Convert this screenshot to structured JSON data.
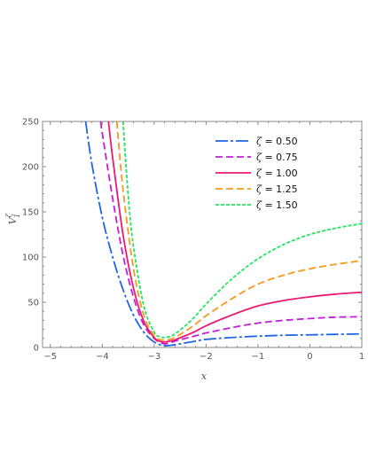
{
  "chart_data": {
    "type": "line",
    "title": "",
    "xlabel": "x",
    "ylabel": "V",
    "ylabel_sup": "ζ",
    "ylabel_sub": "1",
    "xlim": [
      -5.15,
      1.0
    ],
    "ylim": [
      0,
      250
    ],
    "x_ticks": [
      -5,
      -4,
      -3,
      -2,
      -1,
      0,
      1
    ],
    "x_tick_labels": [
      "−5",
      "−4",
      "−3",
      "−2",
      "−1",
      "0",
      "1"
    ],
    "y_ticks": [
      0,
      50,
      100,
      150,
      200,
      250
    ],
    "y_tick_labels": [
      "0",
      "50",
      "100",
      "150",
      "200",
      "250"
    ],
    "grid": false,
    "legend_position": "top-right",
    "legend_prefix": "ζ",
    "series": [
      {
        "name": "= 0.50",
        "color": "#1f66e5",
        "dash": "long-dash",
        "x": [
          -4.32,
          -4.2,
          -4.0,
          -3.8,
          -3.6,
          -3.4,
          -3.2,
          -3.0,
          -2.8,
          -2.6,
          -2.4,
          -2.2,
          -2.0,
          -1.5,
          -1.0,
          -0.5,
          0.0,
          0.5,
          1.0
        ],
        "y": [
          250,
          203,
          144,
          100,
          64,
          36,
          17,
          6,
          2,
          3,
          5,
          7,
          9,
          11,
          12.5,
          13.5,
          14,
          14.5,
          15
        ]
      },
      {
        "name": "= 0.75",
        "color": "#c21fd6",
        "dash": "dash",
        "x": [
          -4.03,
          -4.0,
          -3.8,
          -3.6,
          -3.4,
          -3.2,
          -3.0,
          -2.9,
          -2.8,
          -2.7,
          -2.6,
          -2.4,
          -2.2,
          -2.0,
          -1.5,
          -1.0,
          -0.5,
          0.0,
          0.5,
          1.0
        ],
        "y": [
          250,
          237,
          165,
          102,
          56,
          25,
          10,
          6,
          4,
          5,
          7,
          10,
          13,
          16,
          22,
          27,
          30,
          32,
          33.5,
          34
        ]
      },
      {
        "name": "= 1.00",
        "color": "#ea1a72",
        "dash": "solid",
        "x": [
          -3.88,
          -3.8,
          -3.6,
          -3.4,
          -3.2,
          -3.0,
          -2.9,
          -2.8,
          -2.7,
          -2.6,
          -2.4,
          -2.2,
          -2.0,
          -1.5,
          -1.0,
          -0.5,
          0.0,
          0.5,
          1.0
        ],
        "y": [
          250,
          210,
          125,
          66,
          29,
          11,
          7,
          6,
          7,
          8.5,
          13,
          18,
          24,
          36,
          46,
          52,
          56,
          59,
          61
        ]
      },
      {
        "name": "= 1.25",
        "color": "#f59a1b",
        "dash": "dash",
        "x": [
          -3.72,
          -3.6,
          -3.4,
          -3.2,
          -3.0,
          -2.9,
          -2.8,
          -2.7,
          -2.6,
          -2.4,
          -2.2,
          -2.0,
          -1.5,
          -1.0,
          -0.5,
          0.0,
          0.5,
          1.0
        ],
        "y": [
          250,
          175,
          88,
          36,
          13,
          9,
          8,
          9,
          11,
          18,
          26,
          35,
          54,
          70,
          80,
          87,
          92,
          96
        ]
      },
      {
        "name": "= 1.50",
        "color": "#1ee85e",
        "dash": "short-dash",
        "x": [
          -3.6,
          -3.5,
          -3.4,
          -3.2,
          -3.0,
          -2.9,
          -2.8,
          -2.7,
          -2.6,
          -2.4,
          -2.2,
          -2.0,
          -1.5,
          -1.0,
          -0.5,
          0.0,
          0.5,
          1.0
        ],
        "y": [
          250,
          168,
          112,
          46,
          17,
          12,
          11,
          12,
          15,
          24,
          35,
          48,
          76,
          98,
          114,
          125,
          132,
          137
        ]
      }
    ]
  }
}
